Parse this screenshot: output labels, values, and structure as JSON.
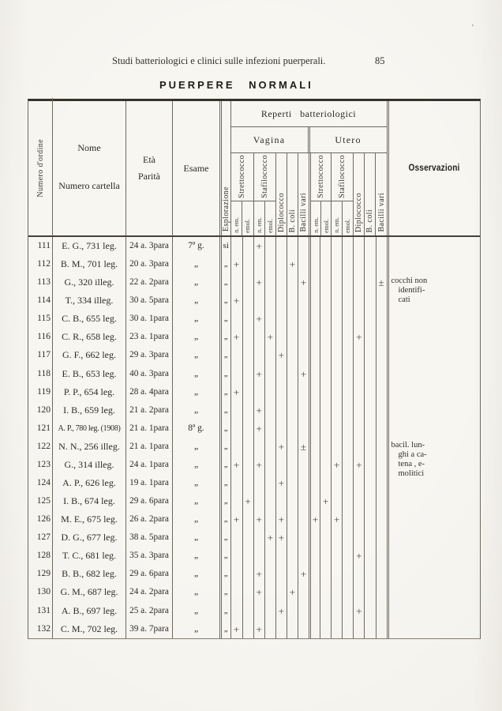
{
  "page": {
    "running_head": "Studi batteriologici e clinici sulle infezioni puerperali.",
    "page_number": "85",
    "title": "PUERPERE NORMALI",
    "artifact": "’"
  },
  "table": {
    "headers": {
      "numero_ordine": "Numero d'ordine",
      "nome": "Nome",
      "numero_cartella": "Numero cartella",
      "eta": "Età",
      "parita": "Parità",
      "esame": "Esame",
      "esplorazione": "Esplorazione",
      "reperti": "Reperti batteriologici",
      "vagina": "Vagina",
      "utero": "Utero",
      "strettococco": "Strettococco",
      "stafilococco": "Stafilococco",
      "diplococco": "Diplococco",
      "b_coli": "B. coli",
      "bacilli_vari": "Bacilli vari",
      "n_em": "n. em.",
      "emol": "emol.",
      "osservazioni": "Osservazioni"
    },
    "mark_columns": [
      "vagina-strettococco-n-em",
      "vagina-strettococco-emol",
      "vagina-stafilococco-n-em",
      "vagina-stafilococco-emol",
      "vagina-diplococco",
      "vagina-b-coli",
      "vagina-bacilli-vari",
      "utero-strettococco-n-em",
      "utero-strettococco-emol",
      "utero-stafilococco-n-em",
      "utero-stafilococco-emol",
      "utero-diplococco",
      "utero-b-coli",
      "utero-bacilli-vari"
    ],
    "rows": [
      {
        "n": "111",
        "nome": "E. G., 731 leg.",
        "eta": "24 a. 3para",
        "esame": "7ª g.",
        "esplorazione": "si",
        "marks": [
          "",
          "",
          "+",
          "",
          "",
          "",
          "",
          "",
          "",
          "",
          "",
          "",
          "",
          ""
        ],
        "oss": ""
      },
      {
        "n": "112",
        "nome": "B. M., 701 leg.",
        "eta": "20 a. 3para",
        "esame": "„",
        "esplorazione": "„",
        "marks": [
          "+",
          "",
          "",
          "",
          "",
          "+",
          "",
          "",
          "",
          "",
          "",
          "",
          "",
          ""
        ],
        "oss": ""
      },
      {
        "n": "113",
        "nome": "G., 320 illeg.",
        "eta": "22 a. 2para",
        "esame": "„",
        "esplorazione": "„",
        "marks": [
          "",
          "",
          "+",
          "",
          "",
          "",
          "+",
          "",
          "",
          "",
          "",
          "",
          "",
          "±"
        ],
        "oss": "cocchi non\nidentifi-\ncati"
      },
      {
        "n": "114",
        "nome": "T., 334 illeg.",
        "eta": "30 a. 5para",
        "esame": "„",
        "esplorazione": "„",
        "marks": [
          "+",
          "",
          "",
          "",
          "",
          "",
          "",
          "",
          "",
          "",
          "",
          "",
          "",
          ""
        ],
        "oss": ""
      },
      {
        "n": "115",
        "nome": "C. B., 655 leg.",
        "eta": "30 a. 1para",
        "esame": "„",
        "esplorazione": "„",
        "marks": [
          "",
          "",
          "+",
          "",
          "",
          "",
          "",
          "",
          "",
          "",
          "",
          "",
          "",
          ""
        ],
        "oss": ""
      },
      {
        "n": "116",
        "nome": "C. R., 658 leg.",
        "eta": "23 a. 1para",
        "esame": "„",
        "esplorazione": "„",
        "marks": [
          "+",
          "",
          "",
          "+",
          "",
          "",
          "",
          "",
          "",
          "",
          "",
          "+",
          "",
          ""
        ],
        "oss": ""
      },
      {
        "n": "117",
        "nome": "G. F., 662 leg.",
        "eta": "29 a. 3para",
        "esame": "„",
        "esplorazione": "„",
        "marks": [
          "",
          "",
          "",
          "",
          "+",
          "",
          "",
          "",
          "",
          "",
          "",
          "",
          "",
          ""
        ],
        "oss": ""
      },
      {
        "n": "118",
        "nome": "E. B., 653 leg.",
        "eta": "40 a. 3para",
        "esame": "„",
        "esplorazione": "„",
        "marks": [
          "",
          "",
          "+",
          "",
          "",
          "",
          "+",
          "",
          "",
          "",
          "",
          "",
          "",
          ""
        ],
        "oss": ""
      },
      {
        "n": "119",
        "nome": "P. P., 654 leg.",
        "eta": "28 a. 4para",
        "esame": "„",
        "esplorazione": "„",
        "marks": [
          "+",
          "",
          "",
          "",
          "",
          "",
          "",
          "",
          "",
          "",
          "",
          "",
          "",
          ""
        ],
        "oss": ""
      },
      {
        "n": "120",
        "nome": "I. B., 659 leg.",
        "eta": "21 a. 2para",
        "esame": "„",
        "esplorazione": "„",
        "marks": [
          "",
          "",
          "+",
          "",
          "",
          "",
          "",
          "",
          "",
          "",
          "",
          "",
          "",
          ""
        ],
        "oss": ""
      },
      {
        "n": "121",
        "nome": "A. P., 780 leg. (1908)",
        "eta": "21 a. 1para",
        "esame": "8ª g.",
        "esplorazione": "„",
        "marks": [
          "",
          "",
          "+",
          "",
          "",
          "",
          "",
          "",
          "",
          "",
          "",
          "",
          "",
          ""
        ],
        "oss": ""
      },
      {
        "n": "122",
        "nome": "N. N., 256 illeg.",
        "eta": "21 a. 1para",
        "esame": "„",
        "esplorazione": "„",
        "marks": [
          "",
          "",
          "",
          "",
          "+",
          "",
          "±",
          "",
          "",
          "",
          "",
          "",
          "",
          ""
        ],
        "oss": "bacil. lun-\nghi a ca-\ntena , e-\nmolitici"
      },
      {
        "n": "123",
        "nome": "G., 314 illeg.",
        "eta": "24 a. 1para",
        "esame": "„",
        "esplorazione": "„",
        "marks": [
          "+",
          "",
          "+",
          "",
          "",
          "",
          "",
          "",
          "",
          "+",
          "",
          "+",
          "",
          ""
        ],
        "oss": ""
      },
      {
        "n": "124",
        "nome": "A. P., 626 leg.",
        "eta": "19 a. 1para",
        "esame": "„",
        "esplorazione": "„",
        "marks": [
          "",
          "",
          "",
          "",
          "+",
          "",
          "",
          "",
          "",
          "",
          "",
          "",
          "",
          ""
        ],
        "oss": ""
      },
      {
        "n": "125",
        "nome": "I. B., 674 leg.",
        "eta": "29 a. 6para",
        "esame": "„",
        "esplorazione": "„",
        "marks": [
          "",
          "+",
          "",
          "",
          "",
          "",
          "",
          "",
          "+",
          "",
          "",
          "",
          "",
          ""
        ],
        "oss": ""
      },
      {
        "n": "126",
        "nome": "M. E., 675 leg.",
        "eta": "26 a. 2para",
        "esame": "„",
        "esplorazione": "„",
        "marks": [
          "+",
          "",
          "+",
          "",
          "+",
          "",
          "",
          "+",
          "",
          "+",
          "",
          "",
          "",
          ""
        ],
        "oss": ""
      },
      {
        "n": "127",
        "nome": "D. G., 677 leg.",
        "eta": "38 a. 5para",
        "esame": "„",
        "esplorazione": "„",
        "marks": [
          "",
          "",
          "",
          "+",
          "+",
          "",
          "",
          "",
          "",
          "",
          "",
          "",
          "",
          ""
        ],
        "oss": ""
      },
      {
        "n": "128",
        "nome": "T. C., 681 leg.",
        "eta": "35 a. 3para",
        "esame": "„",
        "esplorazione": "„",
        "marks": [
          "",
          "",
          "",
          "",
          "",
          "",
          "",
          "",
          "",
          "",
          "",
          "+",
          "",
          ""
        ],
        "oss": ""
      },
      {
        "n": "129",
        "nome": "B. B., 682 leg.",
        "eta": "29 a. 6para",
        "esame": "„",
        "esplorazione": "„",
        "marks": [
          "",
          "",
          "+",
          "",
          "",
          "",
          "+",
          "",
          "",
          "",
          "",
          "",
          "",
          ""
        ],
        "oss": ""
      },
      {
        "n": "130",
        "nome": "G. M., 687 leg.",
        "eta": "24 a. 2para",
        "esame": "„",
        "esplorazione": "„",
        "marks": [
          "",
          "",
          "+",
          "",
          "",
          "+",
          "",
          "",
          "",
          "",
          "",
          "",
          "",
          ""
        ],
        "oss": ""
      },
      {
        "n": "131",
        "nome": "A. B., 697 leg.",
        "eta": "25 a. 2para",
        "esame": "„",
        "esplorazione": "„",
        "marks": [
          "",
          "",
          "",
          "",
          "+",
          "",
          "",
          "",
          "",
          "",
          "",
          "+",
          "",
          ""
        ],
        "oss": ""
      },
      {
        "n": "132",
        "nome": "C. M., 702 leg.",
        "eta": "39 a. 7para",
        "esame": "„",
        "esplorazione": "„",
        "marks": [
          "+",
          "",
          "+",
          "",
          "",
          "",
          "",
          "",
          "",
          "",
          "",
          "",
          "",
          ""
        ],
        "oss": ""
      }
    ]
  }
}
